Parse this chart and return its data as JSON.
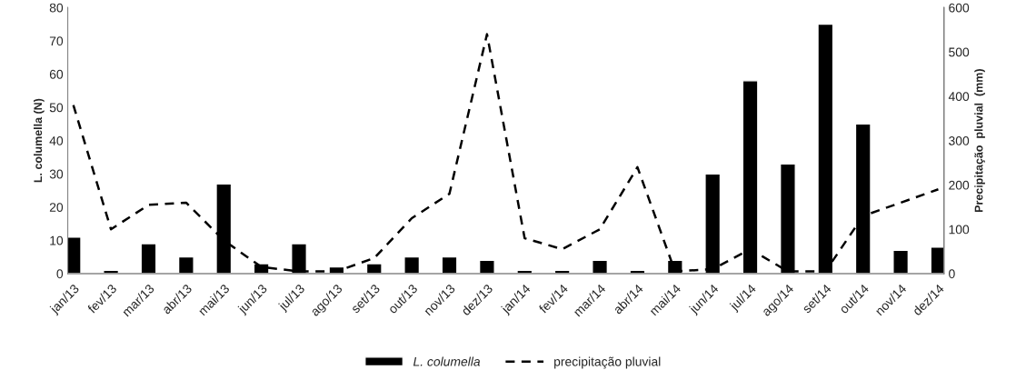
{
  "chart_data": {
    "type": "bar",
    "categories": [
      "jan/13",
      "fev/13",
      "mar/13",
      "abr/13",
      "mai/13",
      "jun/13",
      "jul/13",
      "ago/13",
      "set/13",
      "out/13",
      "nov/13",
      "dez/13",
      "jan/14",
      "fev/14",
      "mar/14",
      "abr/14",
      "mai/14",
      "jun/14",
      "jul/14",
      "ago/14",
      "set/14",
      "out/14",
      "nov/14",
      "dez/14"
    ],
    "series": [
      {
        "name": "L. columella",
        "color": "#000000",
        "values": [
          11,
          1,
          9,
          5,
          27,
          3,
          9,
          2,
          3,
          5,
          5,
          4,
          1,
          1,
          4,
          1,
          4,
          30,
          58,
          33,
          75,
          45,
          7,
          8
        ]
      },
      {
        "name": "precipitação pluvial",
        "type": "line",
        "axis": "y2",
        "color": "#000000",
        "line_style": "dashed",
        "values": [
          380,
          100,
          155,
          160,
          75,
          15,
          5,
          5,
          35,
          125,
          180,
          540,
          80,
          55,
          100,
          240,
          5,
          10,
          55,
          5,
          5,
          130,
          160,
          190
        ]
      }
    ],
    "ylabel": "L. columella (N)",
    "y2label": "Precipitação  pluvial  (mm)",
    "ylim": [
      0,
      80
    ],
    "yticks": [
      0,
      10,
      20,
      30,
      40,
      50,
      60,
      70,
      80
    ],
    "y2lim": [
      0,
      600
    ],
    "y2ticks": [
      0,
      100,
      200,
      300,
      400,
      500,
      600
    ],
    "grid": false,
    "legend": "bottom",
    "marker": "none"
  }
}
